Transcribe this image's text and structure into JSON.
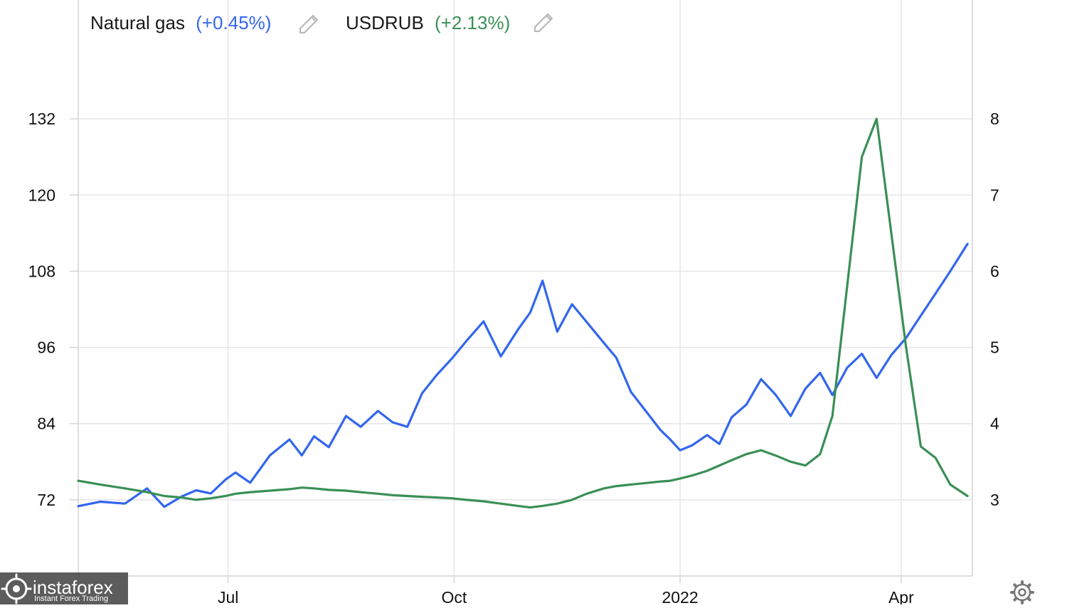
{
  "legend": [
    {
      "name": "Natural gas",
      "change": "(+0.45%)",
      "color": "#3366ee",
      "edit_icon": "pencil-icon"
    },
    {
      "name": "USDRUB",
      "change": "(+2.13%)",
      "color": "#3a8f56",
      "edit_icon": "pencil-icon"
    }
  ],
  "watermark": {
    "brand": "instaforex",
    "tagline": "Instant Forex Trading"
  },
  "settings_icon": "gear-icon",
  "chart_data": {
    "type": "line",
    "x_ticks": [
      "Jul",
      "Oct",
      "2022",
      "Apr"
    ],
    "x_range": [
      "2021-05-01",
      "2022-04-30"
    ],
    "y_left": {
      "ticks": [
        "132",
        "120",
        "108",
        "96",
        "84",
        "72"
      ],
      "ylim": [
        60,
        144
      ]
    },
    "y_right": {
      "ticks": [
        "8",
        "7",
        "6",
        "5",
        "4",
        "3"
      ],
      "ylim": [
        2,
        9
      ]
    },
    "grid": true,
    "legend_position": "top-left",
    "series": [
      {
        "name": "Natural gas",
        "axis": "left",
        "color": "#3366ee",
        "points": [
          [
            "2021-05-01",
            71.0
          ],
          [
            "2021-05-10",
            71.7
          ],
          [
            "2021-05-20",
            71.4
          ],
          [
            "2021-05-29",
            73.8
          ],
          [
            "2021-06-05",
            70.9
          ],
          [
            "2021-06-12",
            72.5
          ],
          [
            "2021-06-18",
            73.5
          ],
          [
            "2021-06-24",
            73.0
          ],
          [
            "2021-06-30",
            75.2
          ],
          [
            "2021-07-04",
            76.3
          ],
          [
            "2021-07-10",
            74.7
          ],
          [
            "2021-07-18",
            79.0
          ],
          [
            "2021-07-26",
            81.5
          ],
          [
            "2021-07-31",
            79.0
          ],
          [
            "2021-08-05",
            82.0
          ],
          [
            "2021-08-11",
            80.3
          ],
          [
            "2021-08-18",
            85.2
          ],
          [
            "2021-08-24",
            83.5
          ],
          [
            "2021-08-31",
            86.0
          ],
          [
            "2021-09-06",
            84.2
          ],
          [
            "2021-09-12",
            83.5
          ],
          [
            "2021-09-18",
            88.8
          ],
          [
            "2021-09-24",
            91.7
          ],
          [
            "2021-09-30",
            94.2
          ],
          [
            "2021-10-06",
            97.0
          ],
          [
            "2021-10-13",
            100.1
          ],
          [
            "2021-10-20",
            94.6
          ],
          [
            "2021-10-27",
            98.8
          ],
          [
            "2021-11-01",
            101.5
          ],
          [
            "2021-11-06",
            106.5
          ],
          [
            "2021-11-12",
            98.5
          ],
          [
            "2021-11-18",
            102.8
          ],
          [
            "2021-11-24",
            100.0
          ],
          [
            "2021-12-01",
            96.7
          ],
          [
            "2021-12-06",
            94.4
          ],
          [
            "2021-12-12",
            89.0
          ],
          [
            "2021-12-18",
            86.0
          ],
          [
            "2021-12-24",
            83.0
          ],
          [
            "2021-12-28",
            81.5
          ],
          [
            "2022-01-01",
            79.8
          ],
          [
            "2022-01-06",
            80.6
          ],
          [
            "2022-01-12",
            82.2
          ],
          [
            "2022-01-17",
            80.8
          ],
          [
            "2022-01-22",
            85.0
          ],
          [
            "2022-01-28",
            87.0
          ],
          [
            "2022-02-03",
            91.0
          ],
          [
            "2022-02-09",
            88.5
          ],
          [
            "2022-02-15",
            85.2
          ],
          [
            "2022-02-21",
            89.5
          ],
          [
            "2022-02-27",
            92.0
          ],
          [
            "2022-03-04",
            88.5
          ],
          [
            "2022-03-10",
            92.8
          ],
          [
            "2022-03-16",
            95.0
          ],
          [
            "2022-03-22",
            91.2
          ],
          [
            "2022-03-28",
            94.8
          ],
          [
            "2022-04-03",
            97.5
          ],
          [
            "2022-04-09",
            101.0
          ],
          [
            "2022-04-15",
            104.5
          ],
          [
            "2022-04-21",
            108.0
          ],
          [
            "2022-04-28",
            112.3
          ]
        ]
      },
      {
        "name": "USDRUB",
        "axis": "right",
        "color": "#3a8f56",
        "points": [
          [
            "2021-05-01",
            3.25
          ],
          [
            "2021-05-10",
            3.2
          ],
          [
            "2021-05-20",
            3.15
          ],
          [
            "2021-05-29",
            3.1
          ],
          [
            "2021-06-05",
            3.05
          ],
          [
            "2021-06-12",
            3.03
          ],
          [
            "2021-06-18",
            3.0
          ],
          [
            "2021-06-24",
            3.02
          ],
          [
            "2021-06-30",
            3.05
          ],
          [
            "2021-07-04",
            3.08
          ],
          [
            "2021-07-10",
            3.1
          ],
          [
            "2021-07-18",
            3.12
          ],
          [
            "2021-07-26",
            3.14
          ],
          [
            "2021-07-31",
            3.16
          ],
          [
            "2021-08-05",
            3.15
          ],
          [
            "2021-08-11",
            3.13
          ],
          [
            "2021-08-18",
            3.12
          ],
          [
            "2021-08-24",
            3.1
          ],
          [
            "2021-08-31",
            3.08
          ],
          [
            "2021-09-06",
            3.06
          ],
          [
            "2021-09-12",
            3.05
          ],
          [
            "2021-09-18",
            3.04
          ],
          [
            "2021-09-24",
            3.03
          ],
          [
            "2021-09-30",
            3.02
          ],
          [
            "2021-10-06",
            3.0
          ],
          [
            "2021-10-13",
            2.98
          ],
          [
            "2021-10-20",
            2.95
          ],
          [
            "2021-10-27",
            2.92
          ],
          [
            "2021-11-01",
            2.9
          ],
          [
            "2021-11-06",
            2.92
          ],
          [
            "2021-11-12",
            2.95
          ],
          [
            "2021-11-18",
            3.0
          ],
          [
            "2021-11-24",
            3.08
          ],
          [
            "2021-12-01",
            3.15
          ],
          [
            "2021-12-06",
            3.18
          ],
          [
            "2021-12-12",
            3.2
          ],
          [
            "2021-12-18",
            3.22
          ],
          [
            "2021-12-24",
            3.24
          ],
          [
            "2021-12-28",
            3.25
          ],
          [
            "2022-01-01",
            3.28
          ],
          [
            "2022-01-06",
            3.32
          ],
          [
            "2022-01-12",
            3.38
          ],
          [
            "2022-01-17",
            3.45
          ],
          [
            "2022-01-22",
            3.52
          ],
          [
            "2022-01-28",
            3.6
          ],
          [
            "2022-02-03",
            3.65
          ],
          [
            "2022-02-09",
            3.58
          ],
          [
            "2022-02-15",
            3.5
          ],
          [
            "2022-02-21",
            3.45
          ],
          [
            "2022-02-27",
            3.6
          ],
          [
            "2022-03-04",
            4.1
          ],
          [
            "2022-03-10",
            5.8
          ],
          [
            "2022-03-16",
            7.5
          ],
          [
            "2022-03-22",
            8.0
          ],
          [
            "2022-03-28",
            6.5
          ],
          [
            "2022-04-03",
            5.0
          ],
          [
            "2022-04-09",
            3.7
          ],
          [
            "2022-04-15",
            3.55
          ],
          [
            "2022-04-21",
            3.2
          ],
          [
            "2022-04-28",
            3.05
          ]
        ]
      }
    ]
  }
}
